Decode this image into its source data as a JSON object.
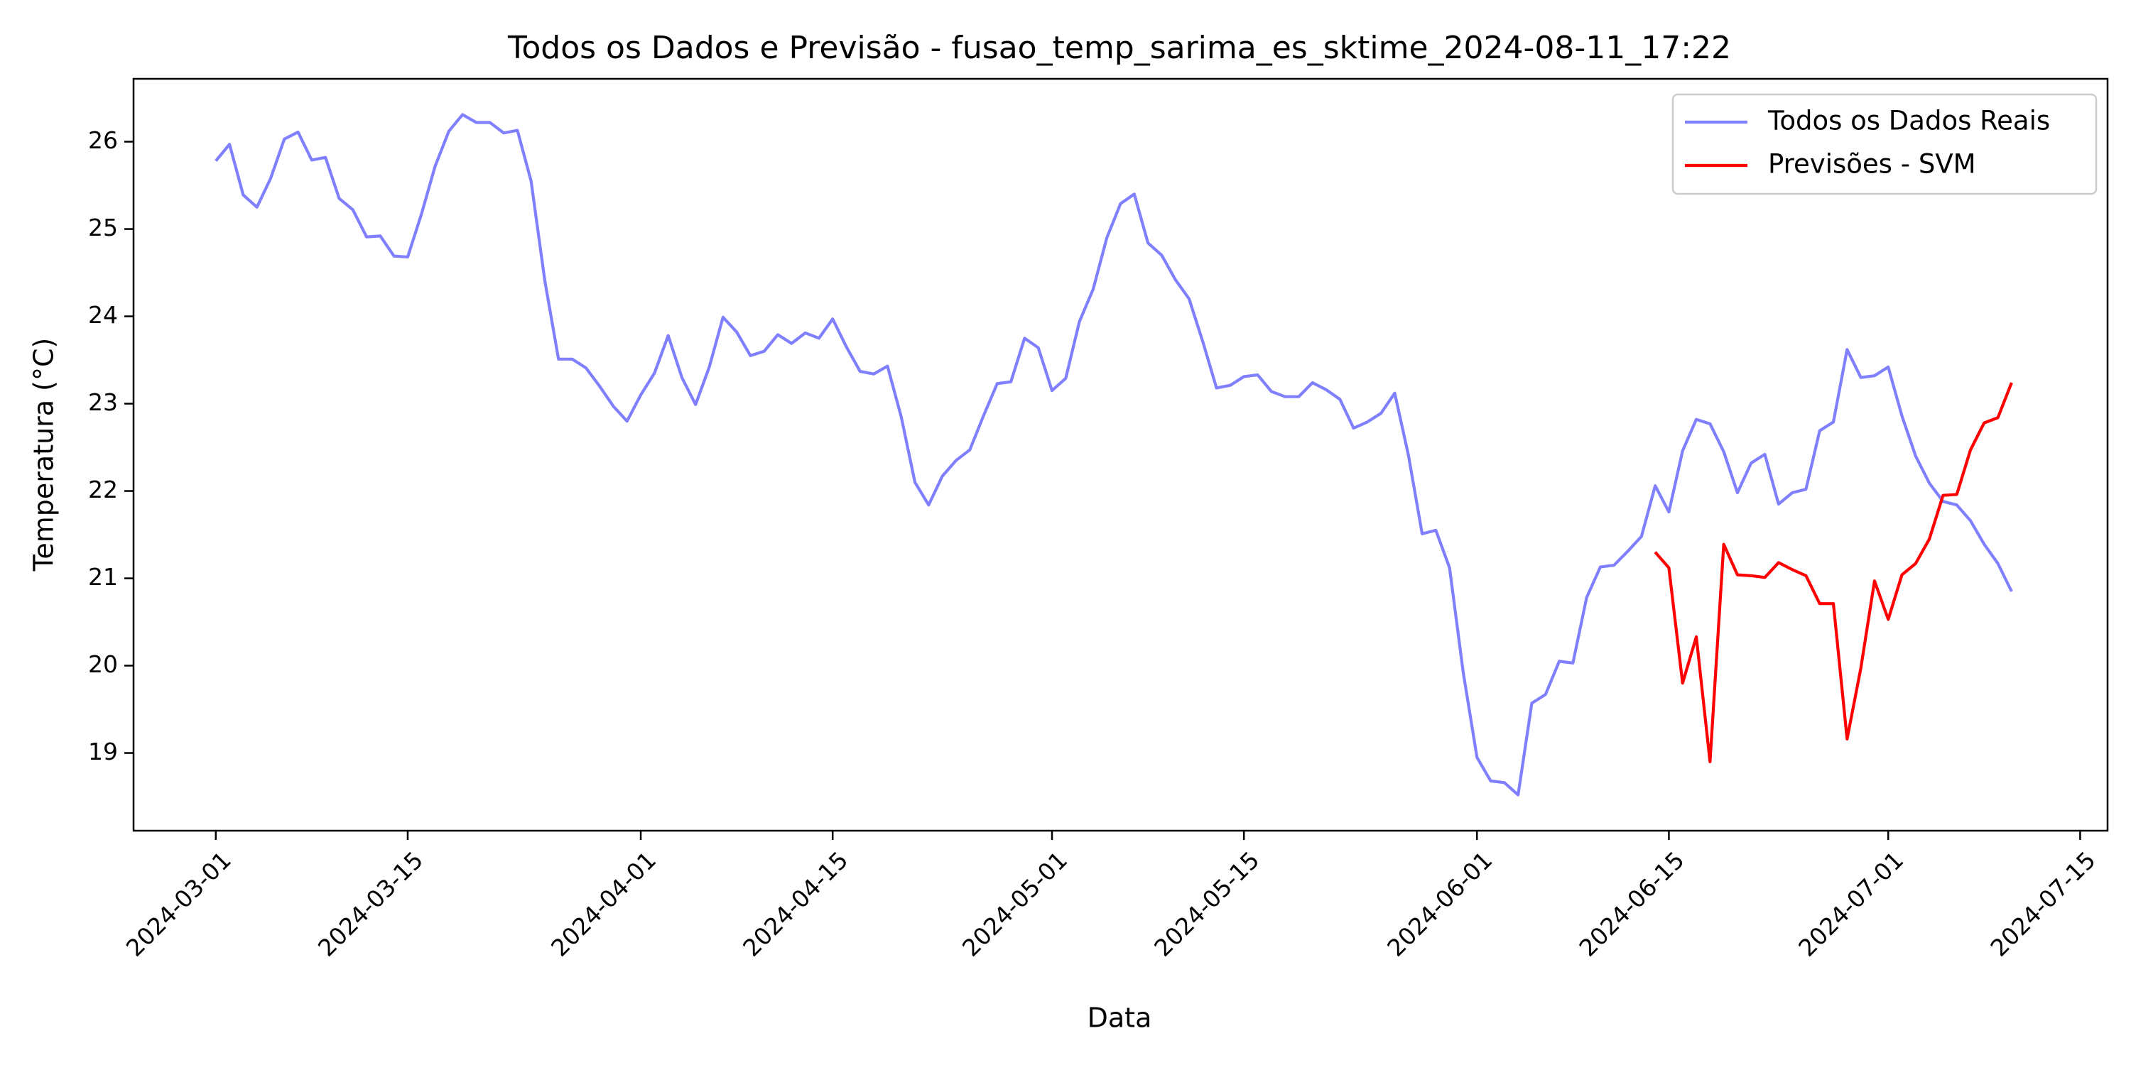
{
  "chart_data": {
    "type": "line",
    "title": "Todos os Dados e Previsão - fusao_temp_sarima_es_sktime_2024-08-11_17:22",
    "x_label": "Data",
    "y_label": "Temperatura (°C)",
    "xlim": [
      "2024-02-24",
      "2024-07-17"
    ],
    "xticks": [
      "2024-03-01",
      "2024-03-15",
      "2024-04-01",
      "2024-04-15",
      "2024-05-01",
      "2024-05-15",
      "2024-06-01",
      "2024-06-15",
      "2024-07-01",
      "2024-07-15"
    ],
    "ylim": [
      18.11,
      26.72
    ],
    "yticks": [
      19,
      20,
      21,
      22,
      23,
      24,
      25,
      26
    ],
    "grid": false,
    "legend": "upper right",
    "series": [
      {
        "name": "Todos os Dados Reais",
        "color": "#8080ff",
        "x": [
          "2024-03-01",
          "2024-03-02",
          "2024-03-03",
          "2024-03-04",
          "2024-03-05",
          "2024-03-06",
          "2024-03-07",
          "2024-03-08",
          "2024-03-09",
          "2024-03-10",
          "2024-03-11",
          "2024-03-12",
          "2024-03-13",
          "2024-03-14",
          "2024-03-15",
          "2024-03-16",
          "2024-03-17",
          "2024-03-18",
          "2024-03-19",
          "2024-03-20",
          "2024-03-21",
          "2024-03-22",
          "2024-03-23",
          "2024-03-24",
          "2024-03-25",
          "2024-03-26",
          "2024-03-27",
          "2024-03-28",
          "2024-03-29",
          "2024-03-30",
          "2024-03-31",
          "2024-04-01",
          "2024-04-02",
          "2024-04-03",
          "2024-04-04",
          "2024-04-05",
          "2024-04-06",
          "2024-04-07",
          "2024-04-08",
          "2024-04-09",
          "2024-04-10",
          "2024-04-11",
          "2024-04-12",
          "2024-04-13",
          "2024-04-14",
          "2024-04-15",
          "2024-04-16",
          "2024-04-17",
          "2024-04-18",
          "2024-04-19",
          "2024-04-20",
          "2024-04-21",
          "2024-04-22",
          "2024-04-23",
          "2024-04-24",
          "2024-04-25",
          "2024-04-26",
          "2024-04-27",
          "2024-04-28",
          "2024-04-29",
          "2024-04-30",
          "2024-05-01",
          "2024-05-02",
          "2024-05-03",
          "2024-05-04",
          "2024-05-05",
          "2024-05-06",
          "2024-05-07",
          "2024-05-08",
          "2024-05-09",
          "2024-05-10",
          "2024-05-11",
          "2024-05-12",
          "2024-05-13",
          "2024-05-14",
          "2024-05-15",
          "2024-05-16",
          "2024-05-17",
          "2024-05-18",
          "2024-05-19",
          "2024-05-20",
          "2024-05-21",
          "2024-05-22",
          "2024-05-23",
          "2024-05-24",
          "2024-05-25",
          "2024-05-26",
          "2024-05-27",
          "2024-05-28",
          "2024-05-29",
          "2024-05-30",
          "2024-05-31",
          "2024-06-01",
          "2024-06-02",
          "2024-06-03",
          "2024-06-04",
          "2024-06-05",
          "2024-06-06",
          "2024-06-07",
          "2024-06-08",
          "2024-06-09",
          "2024-06-10",
          "2024-06-11",
          "2024-06-12",
          "2024-06-13",
          "2024-06-14",
          "2024-06-15",
          "2024-06-16",
          "2024-06-17",
          "2024-06-18",
          "2024-06-19",
          "2024-06-20",
          "2024-06-21",
          "2024-06-22",
          "2024-06-23",
          "2024-06-24",
          "2024-06-25",
          "2024-06-26",
          "2024-06-27",
          "2024-06-28",
          "2024-06-29",
          "2024-06-30",
          "2024-07-01",
          "2024-07-02",
          "2024-07-03",
          "2024-07-04",
          "2024-07-05",
          "2024-07-06",
          "2024-07-07",
          "2024-07-08",
          "2024-07-09",
          "2024-07-10"
        ],
        "values": [
          25.78,
          25.97,
          25.39,
          25.25,
          25.58,
          26.03,
          26.11,
          25.79,
          25.82,
          25.35,
          25.22,
          24.91,
          24.92,
          24.69,
          24.68,
          25.17,
          25.72,
          26.12,
          26.31,
          26.22,
          26.22,
          26.1,
          26.13,
          25.55,
          24.41,
          23.51,
          23.51,
          23.41,
          23.2,
          22.97,
          22.8,
          23.1,
          23.35,
          23.78,
          23.3,
          22.99,
          23.42,
          23.99,
          23.82,
          23.55,
          23.6,
          23.79,
          23.69,
          23.81,
          23.75,
          23.97,
          23.65,
          23.37,
          23.34,
          23.43,
          22.85,
          22.1,
          21.84,
          22.17,
          22.35,
          22.47,
          22.86,
          23.23,
          23.25,
          23.75,
          23.64,
          23.15,
          23.29,
          23.94,
          24.31,
          24.9,
          25.29,
          25.4,
          24.84,
          24.7,
          24.42,
          24.2,
          23.71,
          23.18,
          23.21,
          23.31,
          23.33,
          23.14,
          23.08,
          23.08,
          23.24,
          23.16,
          23.05,
          22.72,
          22.79,
          22.89,
          23.12,
          22.41,
          21.51,
          21.55,
          21.12,
          19.92,
          18.95,
          18.68,
          18.66,
          18.52,
          19.57,
          19.67,
          20.05,
          20.03,
          20.78,
          21.13,
          21.15,
          21.31,
          21.48,
          22.06,
          21.76,
          22.46,
          22.82,
          22.77,
          22.45,
          21.98,
          22.32,
          22.42,
          21.85,
          21.98,
          22.02,
          22.69,
          22.79,
          23.62,
          23.3,
          23.32,
          23.42,
          22.86,
          22.4,
          22.09,
          21.88,
          21.84,
          21.66,
          21.39,
          21.17,
          20.85
        ]
      },
      {
        "name": "Previsões - SVM",
        "color": "#ff0000",
        "x": [
          "2024-06-14",
          "2024-06-15",
          "2024-06-16",
          "2024-06-17",
          "2024-06-18",
          "2024-06-19",
          "2024-06-20",
          "2024-06-21",
          "2024-06-22",
          "2024-06-23",
          "2024-06-24",
          "2024-06-25",
          "2024-06-26",
          "2024-06-27",
          "2024-06-28",
          "2024-06-29",
          "2024-06-30",
          "2024-07-01",
          "2024-07-02",
          "2024-07-03",
          "2024-07-04",
          "2024-07-05",
          "2024-07-06",
          "2024-07-07",
          "2024-07-08",
          "2024-07-09",
          "2024-07-10"
        ],
        "values": [
          21.3,
          21.12,
          19.8,
          20.33,
          18.9,
          21.39,
          21.04,
          21.03,
          21.01,
          21.18,
          21.1,
          21.03,
          20.71,
          20.71,
          19.16,
          19.97,
          20.97,
          20.53,
          21.04,
          21.17,
          21.45,
          21.95,
          21.96,
          22.47,
          22.78,
          22.84,
          23.24
        ]
      }
    ]
  }
}
